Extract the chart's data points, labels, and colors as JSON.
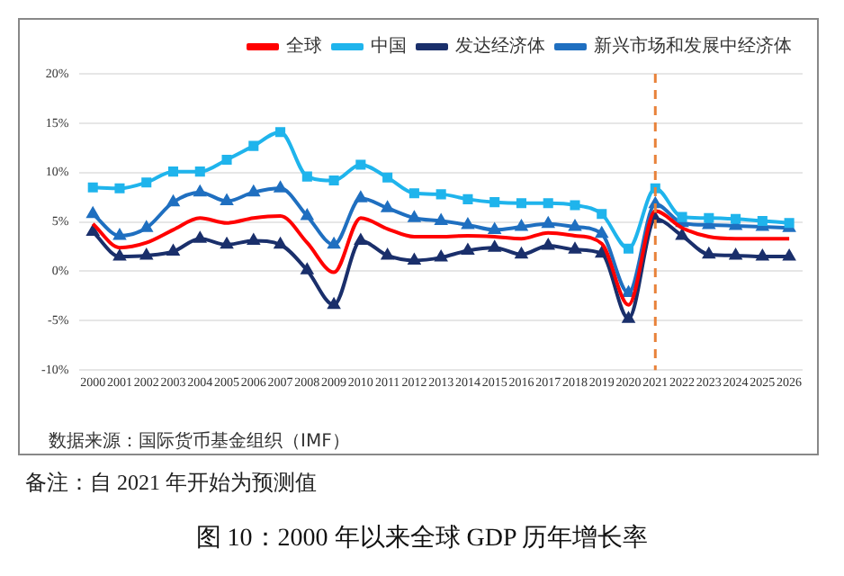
{
  "chart_data": {
    "type": "line",
    "title": "图 10：2000 年以来全球 GDP 历年增长率",
    "categories": [
      "2000",
      "2001",
      "2002",
      "2003",
      "2004",
      "2005",
      "2006",
      "2007",
      "2008",
      "2009",
      "2010",
      "2011",
      "2012",
      "2013",
      "2014",
      "2015",
      "2016",
      "2017",
      "2018",
      "2019",
      "2020",
      "2021",
      "2022",
      "2023",
      "2024",
      "2025",
      "2026"
    ],
    "series": [
      {
        "name": "全球",
        "color": "#ff0000",
        "marker": "none",
        "values": [
          4.8,
          2.4,
          2.9,
          4.2,
          5.4,
          4.9,
          5.4,
          5.6,
          2.9,
          -0.1,
          5.4,
          4.3,
          3.5,
          3.5,
          3.6,
          3.5,
          3.3,
          3.9,
          3.6,
          2.8,
          -3.4,
          6.1,
          4.4,
          3.5,
          3.3,
          3.3,
          3.3
        ]
      },
      {
        "name": "中国",
        "color": "#1fb4ec",
        "marker": "square",
        "values": [
          8.5,
          8.4,
          9.0,
          10.1,
          10.1,
          11.3,
          12.7,
          14.1,
          9.6,
          9.2,
          10.8,
          9.5,
          7.9,
          7.8,
          7.3,
          7.0,
          6.9,
          6.9,
          6.7,
          5.8,
          2.3,
          8.4,
          5.5,
          5.4,
          5.3,
          5.1,
          4.9
        ]
      },
      {
        "name": "发达经济体",
        "color": "#1a2f6b",
        "marker": "triangle",
        "values": [
          4.0,
          1.5,
          1.6,
          2.0,
          3.3,
          2.7,
          3.1,
          2.7,
          0.1,
          -3.4,
          3.1,
          1.6,
          1.1,
          1.4,
          2.1,
          2.4,
          1.7,
          2.6,
          2.2,
          1.8,
          -4.8,
          5.3,
          3.6,
          1.7,
          1.6,
          1.5,
          1.5
        ]
      },
      {
        "name": "新兴市场和发展中经济体",
        "color": "#1f6fc0",
        "marker": "triangle",
        "values": [
          5.8,
          3.6,
          4.4,
          7.0,
          8.0,
          7.1,
          8.0,
          8.4,
          5.6,
          2.7,
          7.4,
          6.4,
          5.4,
          5.1,
          4.7,
          4.2,
          4.5,
          4.8,
          4.5,
          3.8,
          -2.2,
          6.8,
          4.9,
          4.7,
          4.6,
          4.5,
          4.4
        ]
      }
    ],
    "ylim": [
      -10,
      20
    ],
    "yticks": [
      {
        "value": -10,
        "label": "-10%"
      },
      {
        "value": -5,
        "label": "-5%"
      },
      {
        "value": 0,
        "label": "0%"
      },
      {
        "value": 5,
        "label": "5%"
      },
      {
        "value": 10,
        "label": "10%"
      },
      {
        "value": 15,
        "label": "15%"
      },
      {
        "value": 20,
        "label": "20%"
      }
    ],
    "grid": "y",
    "legend": "top",
    "ref_lines": [
      {
        "axis": "x",
        "value": "2021",
        "color": "#e8823a",
        "line_style": "dashed"
      }
    ],
    "annotations": [
      "数据来源：国际货币基金组织（IMF）",
      "备注：自 2021 年开始为预测值"
    ]
  }
}
